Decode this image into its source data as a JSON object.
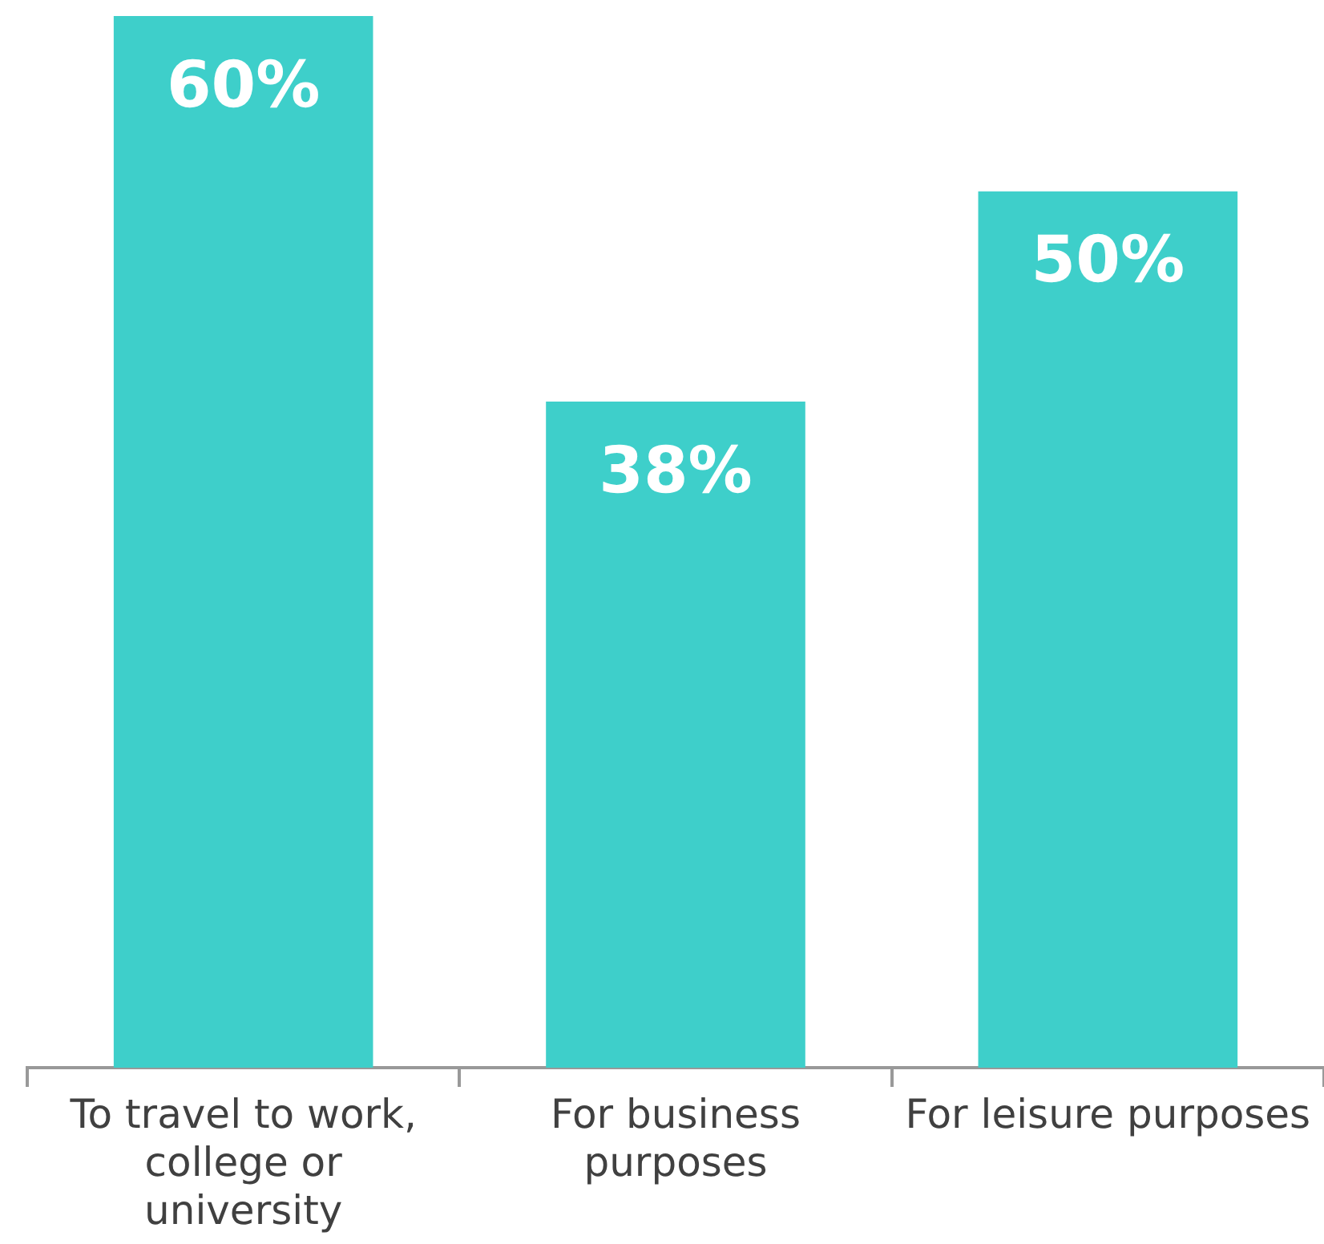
{
  "chart_data": {
    "type": "bar",
    "categories": [
      "To travel to work, college or university",
      "For business purposes",
      "For leisure purposes"
    ],
    "values": [
      60,
      38,
      50
    ],
    "color": "#3ecfca",
    "value_labels": [
      "60%",
      "38%",
      "50%"
    ],
    "grid": false,
    "legend": false
  }
}
